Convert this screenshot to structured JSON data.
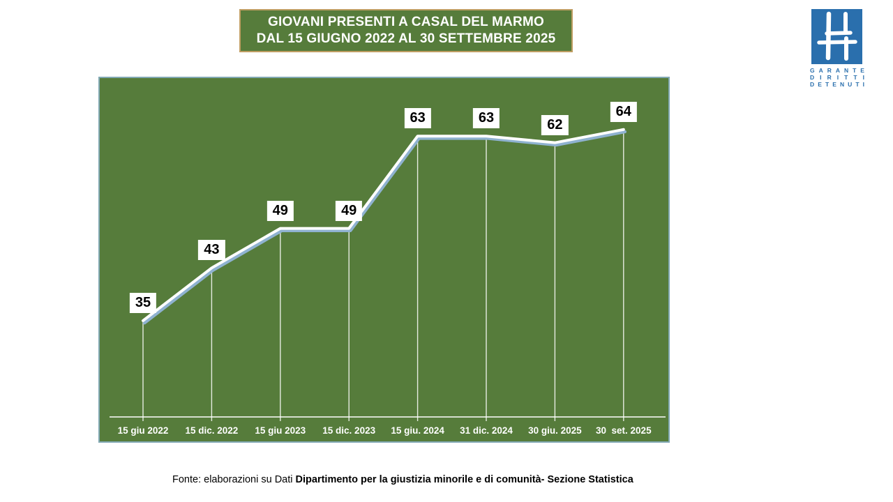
{
  "title": {
    "line1": "GIOVANI PRESENTI A CASAL DEL MARMO",
    "line2": "DAL 15 GIUGNO 2022 AL 30 SETTEMBRE 2025"
  },
  "logo": {
    "name": "garante-diritti-detenuti-logo",
    "lines": [
      "GARANTE",
      "DIRITTI",
      "DETENUTI"
    ]
  },
  "footer": {
    "fonte_label": "Fonte:",
    "regular_part": " elaborazioni su Dati ",
    "bold_part": "Dipartimento per la giustizia minorile e di comunità- Sezione Statistica"
  },
  "colors": {
    "green": "#567c3b",
    "title_border": "#bf9e63",
    "plot_border": "#82a9b4",
    "line_white": "#ffffff",
    "line_shadow": "#8fb2d0",
    "drop_line": "rgba(255,255,255,0.85)",
    "logo_blue": "#2a6fad",
    "label_bg": "#ffffff",
    "label_text": "#000000"
  },
  "chart_data": {
    "type": "line",
    "title": "GIOVANI PRESENTI A CASAL DEL MARMO DAL 15 GIUGNO 2022 AL 30 SETTEMBRE 2025",
    "categories": [
      "15 giu 2022",
      "15 dic. 2022",
      "15 giu 2023",
      "15 dic. 2023",
      "15 giu. 2024",
      "31 dic. 2024",
      "30 giu. 2025",
      "30  set. 2025"
    ],
    "values": [
      35,
      43,
      49,
      49,
      63,
      63,
      62,
      64
    ],
    "xlabel": "",
    "ylabel": "",
    "ylim": [
      20,
      70
    ],
    "grid": false,
    "legend": false,
    "data_labels": true,
    "drop_lines": true,
    "line_color": "#ffffff",
    "shadow_color": "#8fb2d0",
    "plot_background": "#567c3b"
  }
}
